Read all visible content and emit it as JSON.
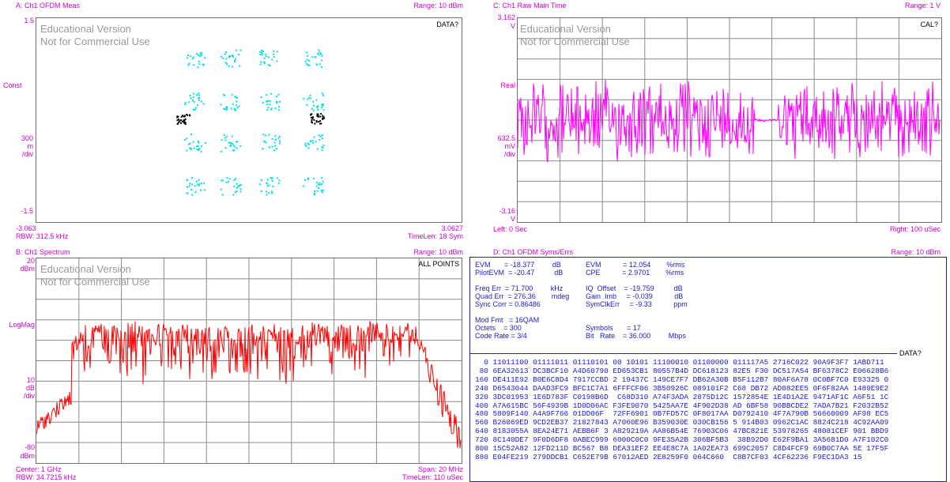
{
  "watermark": {
    "line1": "Educational Version",
    "line2": "Not for Commercial Use"
  },
  "panelA": {
    "title": "A: Ch1 OFDM Meas",
    "range": "Range: 10 dBm",
    "status": "DATA?",
    "y_top": "1.5",
    "y_mid": "Const",
    "y_scale1": "300",
    "y_scale2": "m",
    "y_scale3": "/div",
    "y_bottom": "-1.5",
    "x_left": "-3.063",
    "x_right": "3.0627",
    "footer_left": "RBW: 312.5 kHz",
    "footer_right": "TimeLen: 18  Sym"
  },
  "panelB": {
    "title": "B: Ch1 Spectrum",
    "range": "Range: 10 dBm",
    "status": "ALL POINTS",
    "y_top1": "20",
    "y_top2": "dBm",
    "y_mid": "LogMag",
    "y_scale1": "10",
    "y_scale2": "dB",
    "y_scale3": "/div",
    "y_bottom1": "-80",
    "y_bottom2": "dBm",
    "footer_left1": "Center: 1 GHz",
    "footer_left2": "RBW: 34.7215 kHz",
    "footer_right1": "Span: 20 MHz",
    "footer_right2": "TimeLen: 110 uSec"
  },
  "panelC": {
    "title": "C: Ch1 Raw Main Time",
    "range": "Range: 1  V",
    "status": "CAL?",
    "y_top1": "3.162",
    "y_top2": "V",
    "y_mid": "Real",
    "y_scale1": "632.5",
    "y_scale2": "mV",
    "y_scale3": "/div",
    "y_bottom1": "-3.16",
    "y_bottom2": "V",
    "footer_left": "Left: 0  Sec",
    "footer_right": "Right: 100 uSec"
  },
  "panelD": {
    "title": "D: Ch1 OFDM Syms/Errs",
    "range": "Range: 10 dBm",
    "status": "DATA?",
    "meas_left": "EVM       = -18.377         dB\nPilotEVM  = -20.47          dB\n\nFreq Err  = 71.700         kHz\nQuad Err  = 276.36        mdeg\nSync Corr = 0.86486\n\nMod Fmt   = 16QAM\nOctets    = 300\nCode Rate = 3/4",
    "meas_right": "EVM           = 12.054        %rms\nCPE           = 2.9701        %rms\n\nIQ  Offset    = -19.759          dB\nGain  Imb     = -0.039           dB\nSymClkErr     = -9.33           ppm\n\n\nSymbols       = 17\nBit   Rate    = 36.000         Mbps",
    "hex_rows": [
      "  0 11011100 01111011 01110101 00 10101 11100010 01100000 011117A5 2716C022 90A9F3F7 1ABD711",
      " 80 6EA32613 DC3BCF10 A4D60790 ED653CB1 80557B4D DC618123 82E5 F30 DC517A54 BF6378C2 E06628B6",
      "160 DE411E92 B0E6C8D4 7917CCBD 2 19437C 149CE7F7 DB62A30B B5F112B7 80AF6A78 0C0BF7C0 E93325 0",
      "240 D6543044 DAAD3FC9 BFC1C7A1 6FFFCF06 3B50926C 089101F2 C68 DB72 AD082EE5 0F6F82AA 1489E9E2",
      "320 3DC01953 1E6D783F C0198B6D  C68D310 A74F3ADA 2875D12C 1572854E 1E4D1A2E 9471AF1C A6F51 1C",
      "400 A7A615BC 56F4939B 1D0D06AC F3FE9070 5425AA7E 4F902D38 AD 6BF58 90BBCDE2 7ADA7B21 F2032B52",
      "480 5809F140 A4A9F766 01DD06F  72FF6901 0B7FD57C 0F8017AA D0792410 4F7A790B 56660009 AF98 EC5",
      "560 B26069ED 9CD2EB37 21827843 A7060E96 B359030E 030CB156 5 914B03 0962C1AC 8824C218 4C92AA09",
      "640 8183055A 8EA24E71 AEBB6F 3 A829219A AA86B54E 76903C06 47BC821E 53978265 48081CEF 901 BBD9",
      "720 8C140DE7 9F0D6DF8 0ABEC999 6000C0C0 9FE35A2B 306BF5B3  38B92D0 E62F9BA1 3A5681D0 A7F102C0",
      "800 15C52A82 12FD211D BC567 B8 DEA31EF2 EE4E8C7A 1A02EA73 699C2057 C8D4FCF9 69B0C7AA 5E 17F5F",
      "880 E04FE219 279DDCB1 C652E79B 67012AED 2E8259F0 064C660  C8B7CF03 4CF62236 F9EC1DA3 15"
    ]
  },
  "colors": {
    "trace_spectrum": "#ff0000",
    "trace_time": "#ff00ff",
    "const": "#00e0e0",
    "label": "#d000d0",
    "text_blue": "#1a1ad0"
  }
}
